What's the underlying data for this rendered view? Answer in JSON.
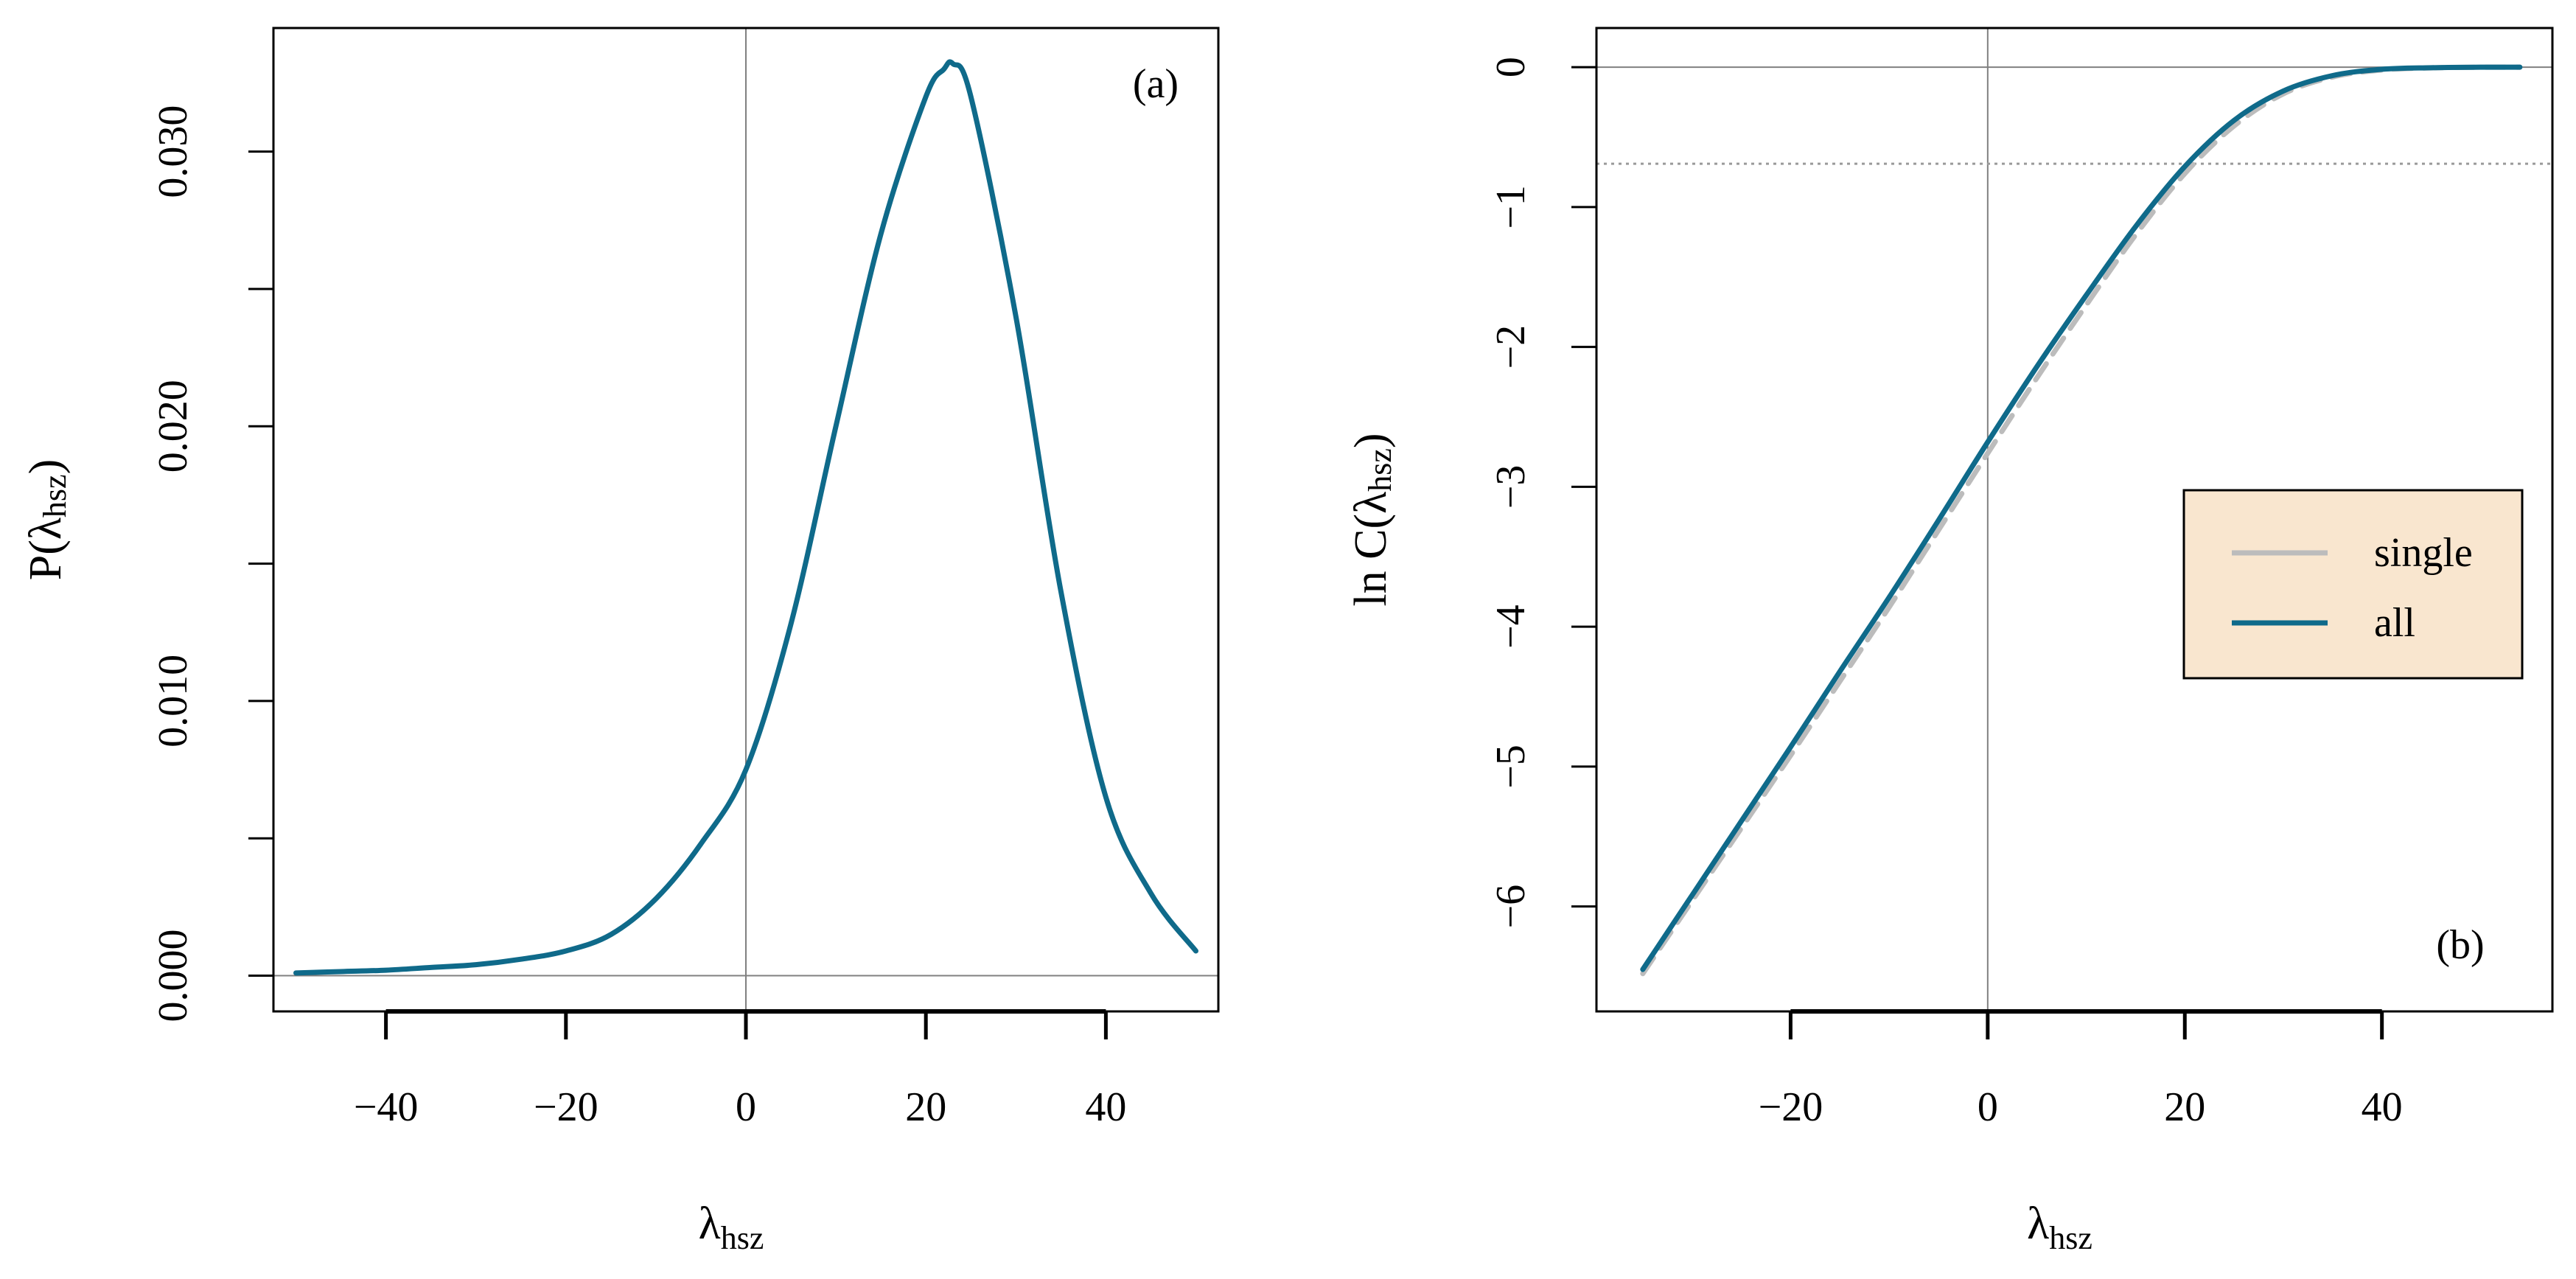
{
  "colors": {
    "series_all": "#0f6a8a",
    "series_single": "#bcbcbc",
    "legend_bg": "#f9e6cf",
    "ref_line": "#808080"
  },
  "chart_data": [
    {
      "id": "a",
      "type": "line",
      "panel_label": "(a)",
      "xlabel": {
        "main": "λ",
        "sub": "hsz"
      },
      "ylabel": {
        "main": "P(λ",
        "sub": "hsz",
        "close": ")"
      },
      "xlim": [
        -52.5,
        52.5
      ],
      "ylim": [
        -0.0013,
        0.0345
      ],
      "x_ticks": [
        -40,
        -20,
        0,
        20,
        40
      ],
      "x_tick_labels": [
        "−40",
        "−20",
        "0",
        "20",
        "40"
      ],
      "y_ticks": [
        0,
        0.01,
        0.02,
        0.03
      ],
      "y_tick_labels": [
        "0.000",
        "0.010",
        "0.020",
        "0.030"
      ],
      "y_minor_ticks": [
        0.005,
        0.015,
        0.025
      ],
      "ref_lines": {
        "vertical_x": 0,
        "horizontal_y": 0
      },
      "series": [
        {
          "name": "all",
          "x": [
            -50,
            -45,
            -40,
            -35,
            -30,
            -25,
            -20,
            -15,
            -10,
            -5,
            0,
            5,
            10,
            15,
            20,
            22,
            23,
            25,
            30,
            35,
            40,
            45,
            50
          ],
          "y": [
            0.0001,
            0.00015,
            0.0002,
            0.0003,
            0.0004,
            0.0006,
            0.0009,
            0.0015,
            0.0028,
            0.0048,
            0.0075,
            0.0128,
            0.02,
            0.027,
            0.032,
            0.033,
            0.0332,
            0.032,
            0.024,
            0.014,
            0.0065,
            0.003,
            0.0009
          ]
        }
      ]
    },
    {
      "id": "b",
      "type": "line",
      "panel_label": "(b)",
      "xlabel": {
        "main": "λ",
        "sub": "hsz"
      },
      "ylabel": {
        "main": "ln C(λ",
        "sub": "hsz",
        "close": ")"
      },
      "xlim": [
        -39.7,
        57.3
      ],
      "ylim": [
        -6.75,
        0.28
      ],
      "x_ticks": [
        -20,
        0,
        20,
        40
      ],
      "x_tick_labels": [
        "−20",
        "0",
        "20",
        "40"
      ],
      "x_axis_extent": [
        -20,
        40
      ],
      "y_ticks": [
        0,
        -1,
        -2,
        -3,
        -4,
        -5,
        -6
      ],
      "y_tick_labels": [
        "0",
        "−1",
        "−2",
        "−3",
        "−4",
        "−5",
        "−6"
      ],
      "ref_lines": {
        "vertical_x": 0,
        "horizontal_y": 0,
        "dotted_y": -0.69
      },
      "legend": {
        "position": "right",
        "entries": [
          "single",
          "all"
        ]
      },
      "series": [
        {
          "name": "single",
          "style": "dashed",
          "x": [
            -35,
            -30,
            -25,
            -20,
            -15,
            -10,
            -5,
            0,
            5,
            10,
            15,
            20,
            25,
            30,
            35,
            40,
            45,
            50,
            54
          ],
          "y": [
            -6.48,
            -5.96,
            -5.44,
            -4.92,
            -4.39,
            -3.86,
            -3.31,
            -2.76,
            -2.22,
            -1.7,
            -1.2,
            -0.76,
            -0.42,
            -0.19,
            -0.07,
            -0.02,
            -0.005,
            0,
            0
          ]
        },
        {
          "name": "all",
          "style": "solid",
          "x": [
            -35,
            -30,
            -25,
            -20,
            -15,
            -10,
            -5,
            0,
            5,
            10,
            15,
            20,
            25,
            30,
            35,
            40,
            45,
            50,
            54
          ],
          "y": [
            -6.45,
            -5.92,
            -5.39,
            -4.86,
            -4.32,
            -3.79,
            -3.24,
            -2.68,
            -2.14,
            -1.63,
            -1.14,
            -0.71,
            -0.38,
            -0.17,
            -0.06,
            -0.015,
            -0.004,
            0,
            0
          ]
        }
      ]
    }
  ]
}
